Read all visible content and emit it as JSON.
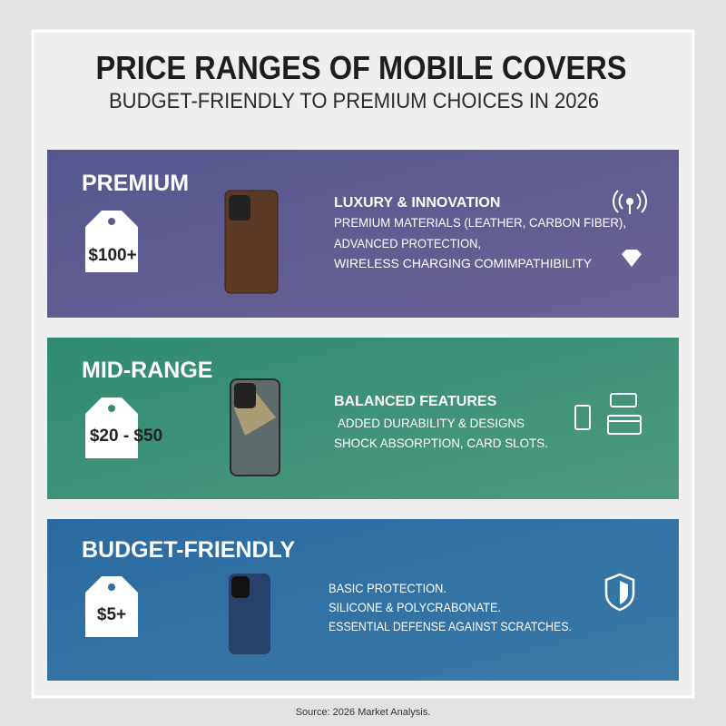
{
  "title": "PRICE RANGES OF MOBILE COVERS",
  "subtitle": "BUDGET-FRIENDLY TO PREMIUM CHOICES IN 2026",
  "tiers": [
    {
      "name": "PREMIUM",
      "price": "$100+",
      "heading": "LUXURY & INNOVATION",
      "lines": [
        "PREMIUM MATERIALS (LEATHER, CARBON FIBER),",
        "ADVANCED PROTECTION,",
        "WIRELESS CHARGING COMIMPATHIBILITY"
      ]
    },
    {
      "name": "MID-RANGE",
      "price": "$20 - $50",
      "heading": "BALANCED FEATURES",
      "lines": [
        "ADDED DURABILITY & DESIGNS",
        "SHOCK ABSORPTION, CARD SLOTS."
      ]
    },
    {
      "name": "BUDGET-FRIENDLY",
      "price": "$5+",
      "lines": [
        "BASIC PROTECTION.",
        "SILICONE & POLYCRABONATE.",
        "ESSENTIAL DEFENSE AGAINST SCRATCHES."
      ]
    }
  ],
  "source": "Source: 2026 Market Analysis."
}
